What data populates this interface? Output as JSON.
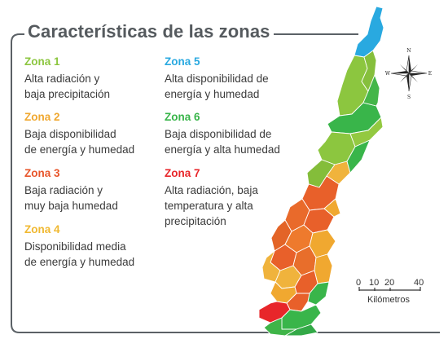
{
  "title": "Características de las zonas",
  "zones": [
    {
      "name": "Zona 1",
      "color": "#8cc63f",
      "description": [
        "Alta radiación y",
        "baja precipitación"
      ]
    },
    {
      "name": "Zona 2",
      "color": "#f0a830",
      "description": [
        "Baja disponibilidad",
        "de energía y humedad"
      ]
    },
    {
      "name": "Zona 3",
      "color": "#e8552a",
      "description": [
        "Baja radiación y",
        "muy baja humedad"
      ]
    },
    {
      "name": "Zona 4",
      "color": "#f0b830",
      "description": [
        "Disponibilidad media",
        "de energía y humedad"
      ]
    },
    {
      "name": "Zona 5",
      "color": "#29a9e0",
      "description": [
        "Alta disponibilidad de",
        "energía y humedad"
      ]
    },
    {
      "name": "Zona 6",
      "color": "#39b54a",
      "description": [
        "Baja disponibilidad de",
        "energía y alta humedad"
      ]
    },
    {
      "name": "Zona 7",
      "color": "#e8262a",
      "description": [
        "Alta radiación, baja",
        "temperatura y alta",
        "precipitación"
      ]
    }
  ],
  "compass": {
    "n": "N",
    "s": "S",
    "e": "E",
    "w": "W"
  },
  "scale": {
    "ticks": [
      "0",
      "10",
      "20",
      "40"
    ],
    "unit": "Kilómetros"
  },
  "map_colors": {
    "zona1": "#8cc63f",
    "zona2": "#f0b33c",
    "zona3": "#e8602a",
    "zona5": "#29a9e0",
    "zona6": "#39b54a",
    "zona7": "#e8262a",
    "border": "#ffffff"
  }
}
